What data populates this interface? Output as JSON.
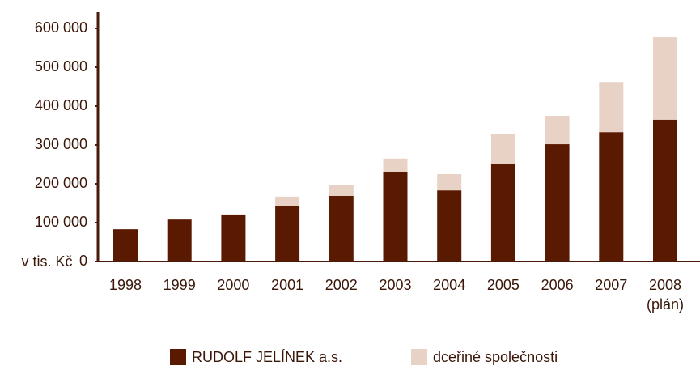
{
  "chart_data": {
    "type": "stacked_bar",
    "y_label": "v tis. Kč",
    "categories": [
      "1998",
      "1999",
      "2000",
      "2001",
      "2002",
      "2003",
      "2004",
      "2005",
      "2006",
      "2007",
      "2008\n(plán)"
    ],
    "series": [
      {
        "name": "RUDOLF JELÍNEK a.s.",
        "color": "#5a1a02",
        "values": [
          83000,
          108000,
          121000,
          142000,
          169000,
          231000,
          183000,
          250000,
          302000,
          333000,
          365000
        ]
      },
      {
        "name": "dceřiné společnosti",
        "color": "#e8d2c6",
        "values": [
          0,
          0,
          0,
          25000,
          27000,
          34000,
          42000,
          79000,
          73000,
          129000,
          212000
        ]
      }
    ],
    "ylim": [
      0,
      600000
    ],
    "yticks": [
      0,
      {
        "value": 100000,
        "label": "100 000"
      },
      {
        "value": 200000,
        "label": "200 000"
      },
      {
        "value": 300000,
        "label": "300 000"
      },
      {
        "value": 400000,
        "label": "400 000"
      },
      {
        "value": 500000,
        "label": "500 000"
      },
      {
        "value": 600000,
        "label": "600 000"
      }
    ]
  }
}
